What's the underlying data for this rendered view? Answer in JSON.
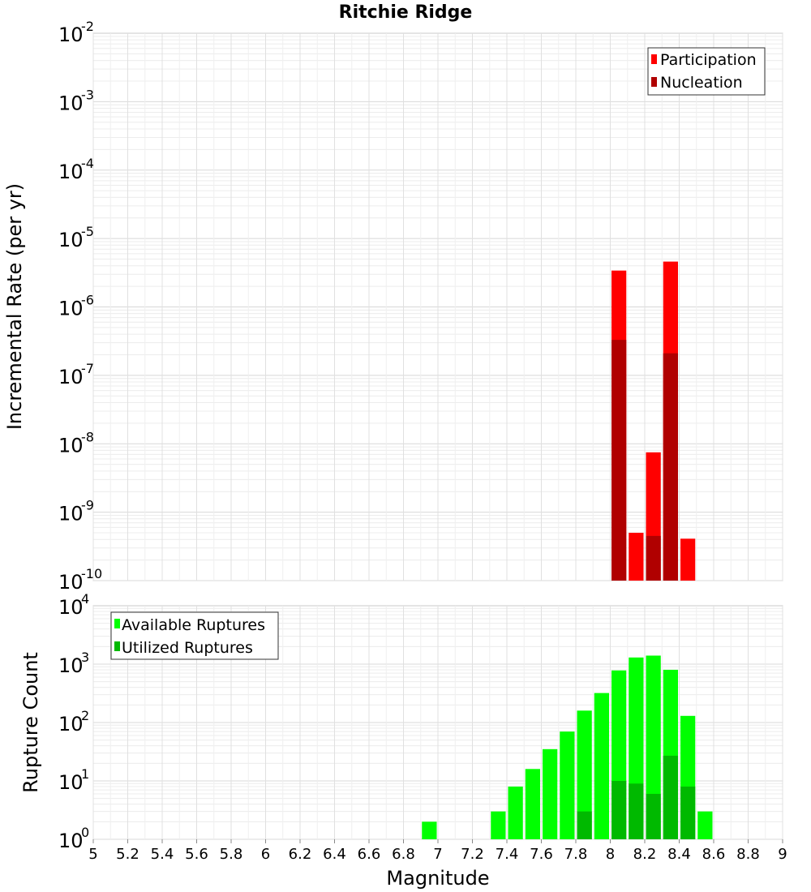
{
  "chart_data": [
    {
      "type": "bar",
      "panel": "top",
      "title": "Ritchie Ridge",
      "ylabel": "Incremental Rate (per yr)",
      "xlabel": "",
      "yscale": "log",
      "ylim_exponents": [
        -10,
        -2
      ],
      "xlim": [
        5,
        9
      ],
      "grid": true,
      "legend_position": "top-right",
      "series": [
        {
          "name": "Participation",
          "color": "#ff0000",
          "x": [
            8.05,
            8.15,
            8.25,
            8.35,
            8.45
          ],
          "values": [
            3.4e-06,
            5e-10,
            7.5e-09,
            4.6e-06,
            4.1e-10
          ]
        },
        {
          "name": "Nucleation",
          "color": "#b00000",
          "x": [
            8.05,
            8.25,
            8.35
          ],
          "values": [
            3.3e-07,
            4.5e-10,
            2.1e-07
          ]
        }
      ]
    },
    {
      "type": "bar",
      "panel": "bottom",
      "title": "",
      "ylabel": "Rupture Count",
      "xlabel": "Magnitude",
      "yscale": "log",
      "ylim_exponents": [
        0,
        4
      ],
      "xlim": [
        5,
        9
      ],
      "xticks": [
        "5",
        "5.2",
        "5.4",
        "5.6",
        "5.8",
        "6",
        "6.2",
        "6.4",
        "6.6",
        "6.8",
        "7",
        "7.2",
        "7.4",
        "7.6",
        "7.8",
        "8",
        "8.2",
        "8.4",
        "8.6",
        "8.8",
        "9"
      ],
      "grid": true,
      "legend_position": "top-left",
      "series": [
        {
          "name": "Available Ruptures",
          "color": "#00ff00",
          "x": [
            6.95,
            7.05,
            7.35,
            7.45,
            7.55,
            7.65,
            7.75,
            7.85,
            7.95,
            8.05,
            8.15,
            8.25,
            8.35,
            8.45,
            8.55
          ],
          "values": [
            2,
            1,
            3,
            8,
            16,
            35,
            70,
            160,
            320,
            780,
            1300,
            1400,
            800,
            130,
            3
          ]
        },
        {
          "name": "Utilized Ruptures",
          "color": "#00b900",
          "x": [
            7.45,
            7.75,
            7.85,
            8.05,
            8.15,
            8.25,
            8.35,
            8.45
          ],
          "values": [
            1,
            1,
            3,
            10,
            9,
            6,
            27,
            8
          ]
        }
      ]
    }
  ]
}
